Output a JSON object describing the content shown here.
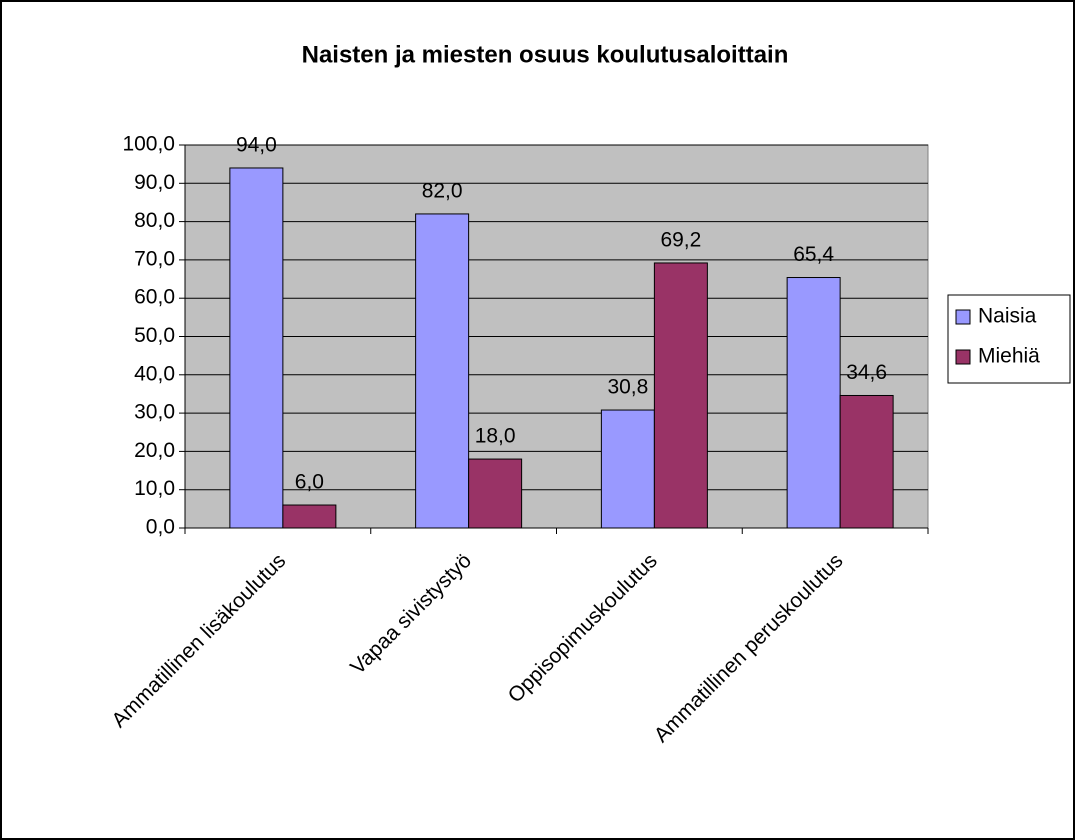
{
  "chart_data": {
    "type": "bar",
    "title": "Naisten ja miesten osuus koulutusaloittain",
    "categories": [
      "Ammatillinen lisäkoulutus",
      "Vapaa sivistystyö",
      "Oppisopimuskoulutus",
      "Ammatillinen peruskoulutus"
    ],
    "series": [
      {
        "name": "Naisia",
        "color": "#9999ff",
        "values": [
          94.0,
          82.0,
          30.8,
          65.4
        ],
        "value_labels": [
          "94,0",
          "82,0",
          "30,8",
          "65,4"
        ]
      },
      {
        "name": "Miehiä",
        "color": "#993366",
        "values": [
          6.0,
          18.0,
          69.2,
          34.6
        ],
        "value_labels": [
          "6,0",
          "18,0",
          "69,2",
          "34,6"
        ]
      }
    ],
    "ylim": [
      0,
      100
    ],
    "yticks": [
      {
        "value": 0,
        "label": "0,0"
      },
      {
        "value": 10,
        "label": "10,0"
      },
      {
        "value": 20,
        "label": "20,0"
      },
      {
        "value": 30,
        "label": "30,0"
      },
      {
        "value": 40,
        "label": "40,0"
      },
      {
        "value": 50,
        "label": "50,0"
      },
      {
        "value": 60,
        "label": "60,0"
      },
      {
        "value": 70,
        "label": "70,0"
      },
      {
        "value": 80,
        "label": "80,0"
      },
      {
        "value": 90,
        "label": "90,0"
      },
      {
        "value": 100,
        "label": "100,0"
      }
    ],
    "grid": true,
    "plot_background": "#c0c0c0",
    "legend": "right"
  }
}
